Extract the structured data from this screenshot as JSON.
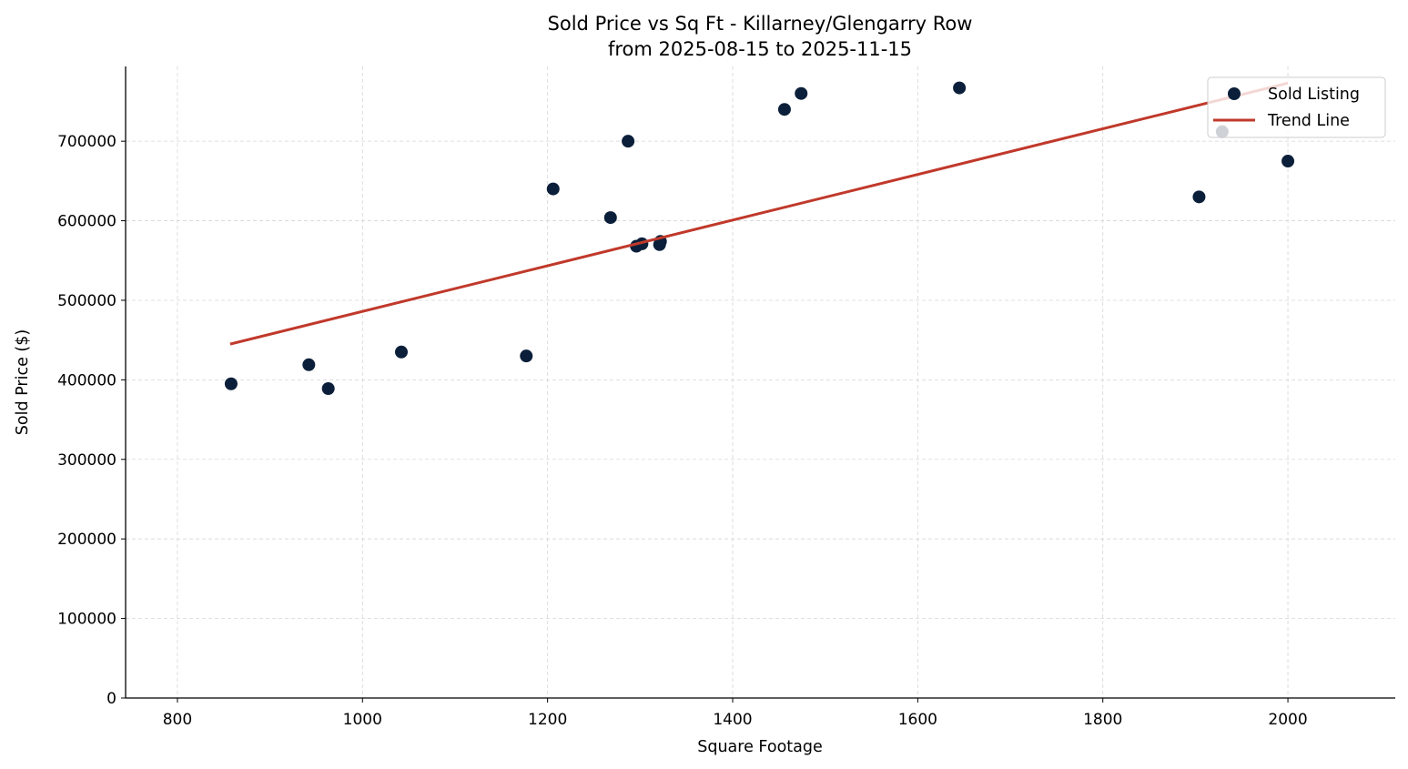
{
  "chart_data": {
    "type": "scatter",
    "title": "Sold Price vs Sq Ft - Killarney/Glengarry Row",
    "subtitle": "from 2025-08-15 to 2025-11-15",
    "xlabel": "Square Footage",
    "ylabel": "Sold Price ($)",
    "xlim": [
      744,
      2116
    ],
    "ylim": [
      0,
      794000
    ],
    "xticks": [
      800,
      1000,
      1200,
      1400,
      1600,
      1800,
      2000
    ],
    "yticks": [
      0,
      100000,
      200000,
      300000,
      400000,
      500000,
      600000,
      700000
    ],
    "grid": true,
    "legend_position": "top-right",
    "series": [
      {
        "name": "Sold Listing",
        "color": "#0b1f3a",
        "points": [
          {
            "x": 858,
            "y": 395000
          },
          {
            "x": 942,
            "y": 419000
          },
          {
            "x": 963,
            "y": 389000
          },
          {
            "x": 1042,
            "y": 435000
          },
          {
            "x": 1177,
            "y": 430000
          },
          {
            "x": 1206,
            "y": 640000
          },
          {
            "x": 1268,
            "y": 604000
          },
          {
            "x": 1287,
            "y": 700000
          },
          {
            "x": 1296,
            "y": 568000
          },
          {
            "x": 1302,
            "y": 571000
          },
          {
            "x": 1322,
            "y": 574000
          },
          {
            "x": 1321,
            "y": 570000
          },
          {
            "x": 1456,
            "y": 740000
          },
          {
            "x": 1474,
            "y": 760000
          },
          {
            "x": 1645,
            "y": 767000
          },
          {
            "x": 1904,
            "y": 630000
          },
          {
            "x": 1929,
            "y": 712000
          },
          {
            "x": 2000,
            "y": 675000
          }
        ]
      },
      {
        "name": "Trend Line",
        "type": "line",
        "color": "#c0392b",
        "points": [
          {
            "x": 857,
            "y": 445000
          },
          {
            "x": 2000,
            "y": 773000
          }
        ]
      }
    ]
  }
}
